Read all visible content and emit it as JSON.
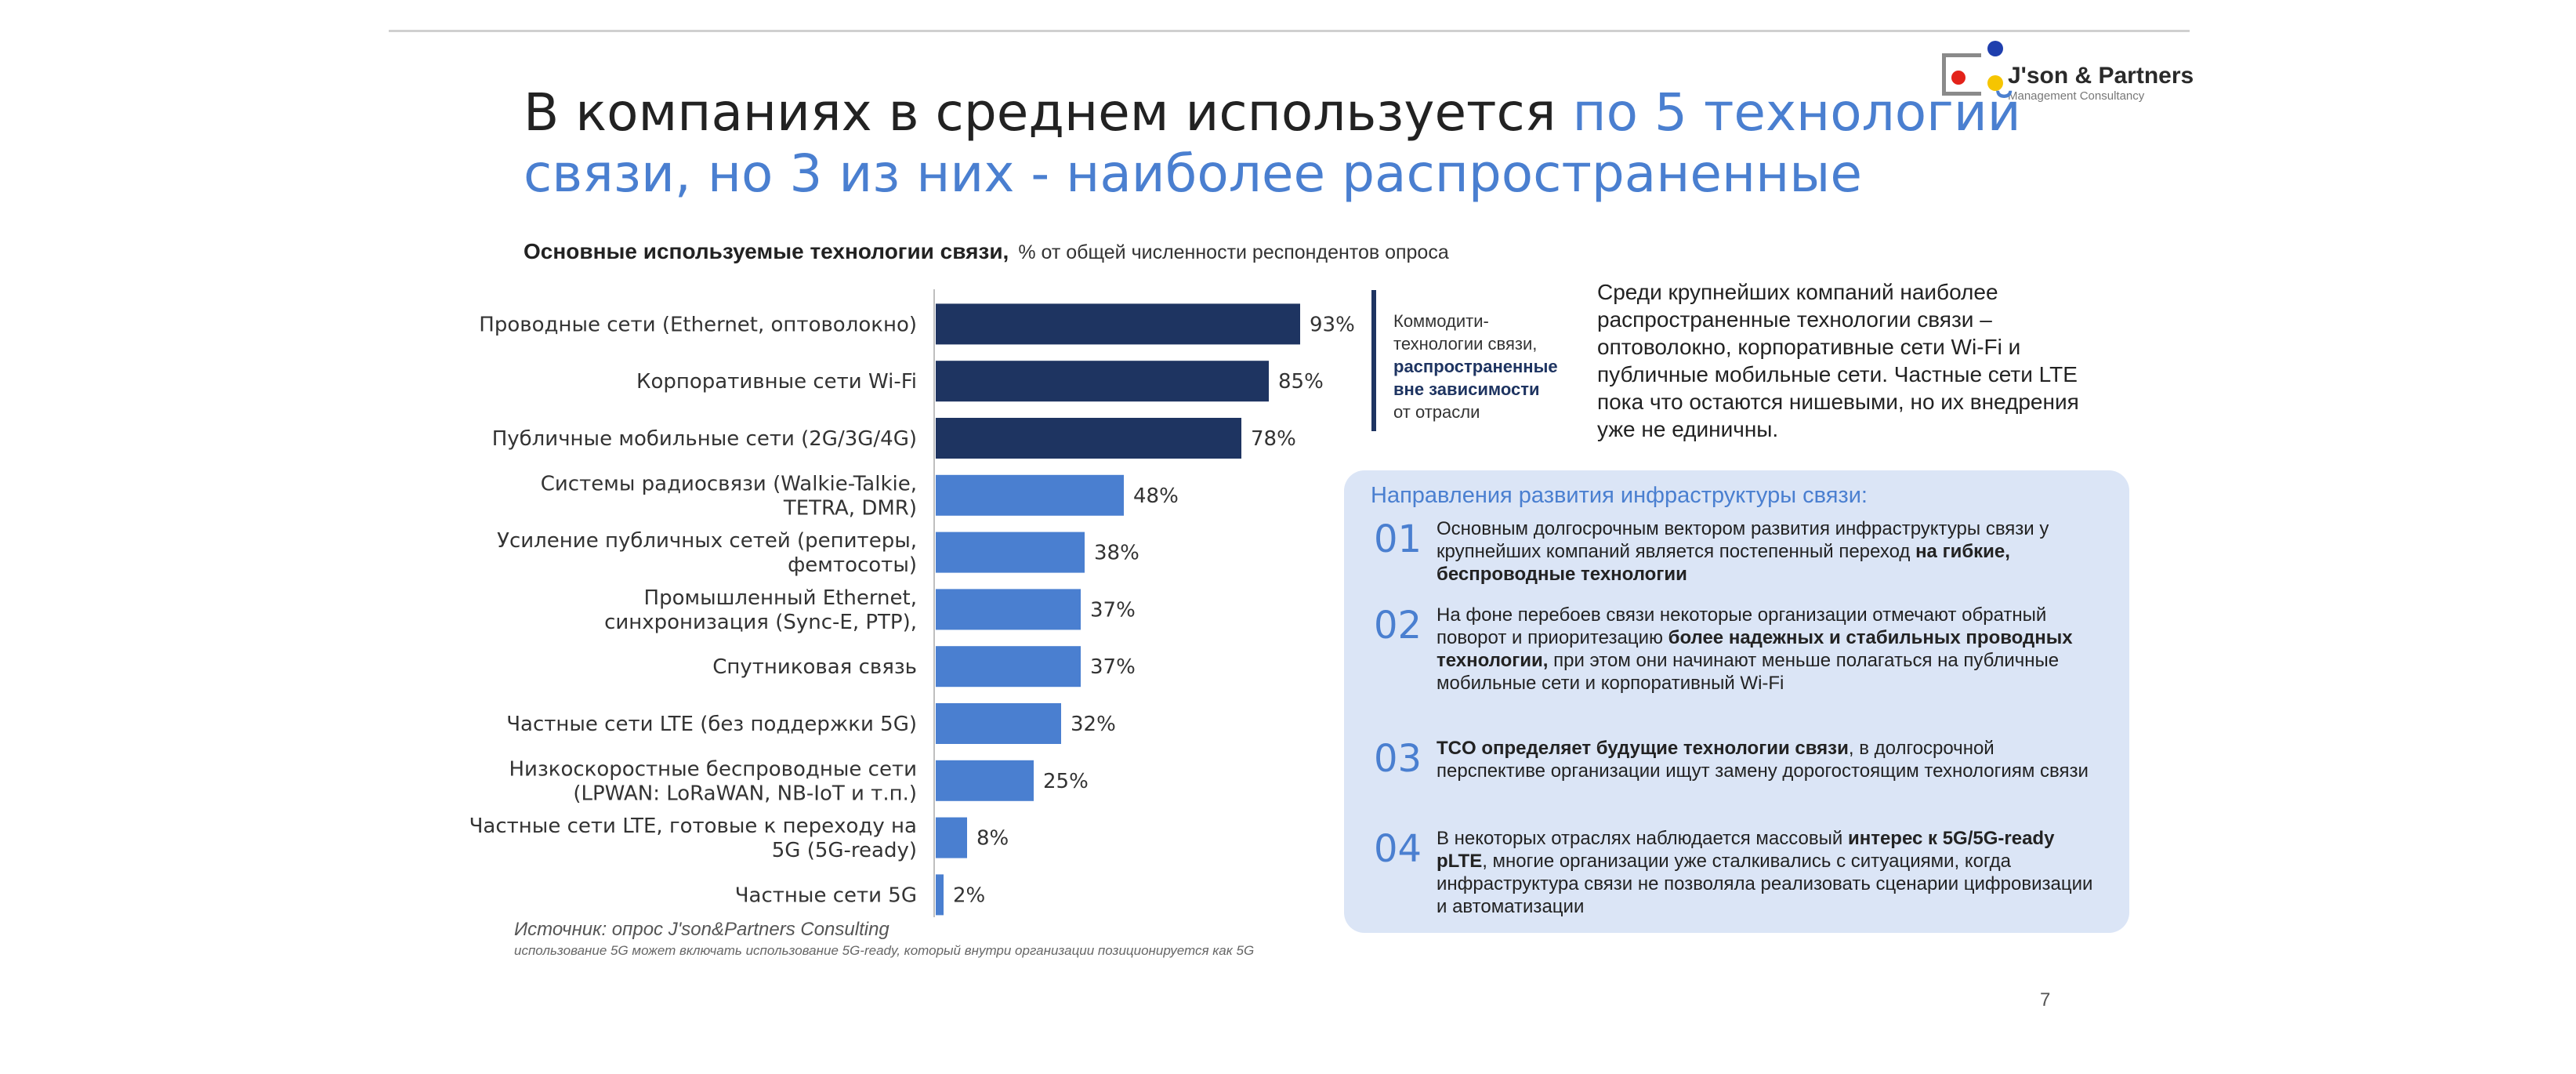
{
  "logo": {
    "brand": "J'son & Partners",
    "sub": "Management Consultancy"
  },
  "title": {
    "part1": "В компаниях в среднем используется ",
    "part2_highlight": "по 5 технологий связи, но 3 из них - наиболее распространенные"
  },
  "chart": {
    "title_bold": "Основные используемые технологии связи,",
    "unit": "% от общей численности респондентов опроса"
  },
  "chart_data": {
    "type": "bar",
    "orientation": "horizontal",
    "categories": [
      [
        "Проводные сети (Ethernet, оптоволокно)"
      ],
      [
        "Корпоративные сети Wi-Fi"
      ],
      [
        "Публичные мобильные сети (2G/3G/4G)"
      ],
      [
        "Системы радиосвязи (Walkie-Talkie,",
        "TETRA, DMR)"
      ],
      [
        "Усиление публичных сетей (репитеры,",
        "фемтосоты)"
      ],
      [
        "Промышленный Ethernet,",
        "синхронизация (Sync-E, PTP),"
      ],
      [
        "Спутниковая связь"
      ],
      [
        "Частные сети LTE (без поддержки 5G)"
      ],
      [
        "Низкоскоростные беспроводные сети",
        "(LPWAN: LoRaWAN, NB-IoT и т.п.)"
      ],
      [
        "Частные сети LTE, готовые к переходу на",
        "5G (5G-ready)"
      ],
      [
        "Частные сети 5G"
      ]
    ],
    "values": [
      93,
      85,
      78,
      48,
      38,
      37,
      37,
      32,
      25,
      8,
      2
    ],
    "value_labels": [
      "93%",
      "85%",
      "78%",
      "48%",
      "38%",
      "37%",
      "37%",
      "32%",
      "25%",
      "8%",
      "2%"
    ],
    "bar_colors": [
      "#1e3461",
      "#1e3461",
      "#1e3461",
      "#4a7fd0",
      "#4a7fd0",
      "#4a7fd0",
      "#4a7fd0",
      "#4a7fd0",
      "#4a7fd0",
      "#4a7fd0",
      "#4a7fd0"
    ],
    "xlim": [
      0,
      100
    ],
    "grid": false
  },
  "source": "Источник: опрос J'son&Partners Consulting",
  "note": "использование 5G может включать использование 5G-ready, который внутри организации позиционируется как 5G",
  "commodity": {
    "line1": "Коммодити-",
    "line2": "технологии связи,",
    "bold1": "распространенные",
    "bold2": "вне зависимости",
    "line3": "от отрасли"
  },
  "summary": "Среди крупнейших компаний наиболее распространенные технологии связи – оптоволокно, корпоративные сети Wi-Fi и публичные мобильные сети. Частные сети LTE пока что остаются нишевыми, но их внедрения уже не единичны.",
  "panel": {
    "title": "Направления развития инфраструктуры связи:",
    "points": [
      {
        "num": "01",
        "t1": "Основным долгосрочным вектором развития инфраструктуры связи у крупнейших компаний является постепенный переход ",
        "b1": "на гибкие, беспроводные технологии",
        "t2": "",
        "b2": "",
        "t3": ""
      },
      {
        "num": "02",
        "t1": "На фоне перебоев связи некоторые организации отмечают обратный поворот и приоритезацию ",
        "b1": "более надежных и стабильных проводных технологии,",
        "t2": " при этом они начинают меньше полагаться на публичные мобильные сети и корпоративный Wi-Fi",
        "b2": "",
        "t3": ""
      },
      {
        "num": "03",
        "t1": "",
        "b1": "TCO определяет будущие технологии связи",
        "t2": ", в долгосрочной перспективе организации ищут замену дорогостоящим технологиям связи",
        "b2": "",
        "t3": ""
      },
      {
        "num": "04",
        "t1": "В некоторых отраслях наблюдается массовый ",
        "b1": "интерес к 5G/5G-ready pLTE",
        "t2": ", многие организации уже сталкивались с ситуациями, когда инфраструктура связи не позволяла реализовать сценарии цифровизации и автоматизации",
        "b2": "",
        "t3": ""
      }
    ]
  },
  "page_number": "7"
}
